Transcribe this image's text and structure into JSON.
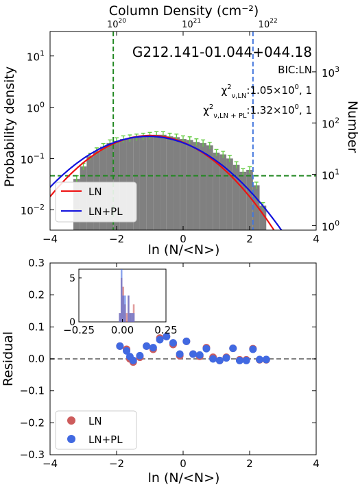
{
  "chart_data": [
    {
      "type": "bar",
      "title": "G212.141-01.044+044.18",
      "xlabel": "ln (N/<N>)",
      "ylabel": "Probability density",
      "ylabel_right": "Number",
      "top_axis_label": "Column Density (cm⁻²)",
      "top_ticks": [
        {
          "base": "10",
          "exp": "20",
          "ln_x": -2.0
        },
        {
          "base": "10",
          "exp": "21",
          "ln_x": 0.25
        },
        {
          "base": "10",
          "exp": "22",
          "ln_x": 2.55
        }
      ],
      "xlim": [
        -4,
        4
      ],
      "ylim_log": [
        0.004,
        30
      ],
      "x_ticks": [
        "−4",
        "−2",
        "0",
        "2",
        "4"
      ],
      "y_ticks": [
        {
          "base": "10",
          "exp": "−2",
          "value": 0.01
        },
        {
          "base": "10",
          "exp": "−1",
          "value": 0.1
        },
        {
          "base": "10",
          "exp": "0",
          "value": 1
        },
        {
          "base": "10",
          "exp": "1",
          "value": 10
        }
      ],
      "right_ticks": [
        {
          "base": "10",
          "exp": "0",
          "value": 0.0049
        },
        {
          "base": "10",
          "exp": "1",
          "value": 0.049
        },
        {
          "base": "10",
          "exp": "2",
          "value": 0.49
        },
        {
          "base": "10",
          "exp": "3",
          "value": 4.9
        }
      ],
      "annotations": {
        "bic": "BIC:LN",
        "chi_ln_label": "LN",
        "chi_ln_value": ":1.05×10",
        "chi_ln_exp": "0",
        "chi_ln_tail": ", 1",
        "chi_lnpl_label": "LN + PL",
        "chi_lnpl_value": ":1.32×10",
        "chi_lnpl_exp": "0",
        "chi_lnpl_tail": ", 1"
      },
      "histogram": {
        "bin_width": 0.2,
        "bins": [
          {
            "x": -3.2,
            "y": 0.04
          },
          {
            "x": -3.0,
            "y": 0.07
          },
          {
            "x": -2.8,
            "y": 0.11
          },
          {
            "x": -2.6,
            "y": 0.14
          },
          {
            "x": -2.4,
            "y": 0.17
          },
          {
            "x": -2.2,
            "y": 0.2
          },
          {
            "x": -2.0,
            "y": 0.22
          },
          {
            "x": -1.8,
            "y": 0.24
          },
          {
            "x": -1.6,
            "y": 0.25
          },
          {
            "x": -1.4,
            "y": 0.26
          },
          {
            "x": -1.2,
            "y": 0.27
          },
          {
            "x": -1.0,
            "y": 0.28
          },
          {
            "x": -0.8,
            "y": 0.29
          },
          {
            "x": -0.6,
            "y": 0.29
          },
          {
            "x": -0.4,
            "y": 0.27
          },
          {
            "x": -0.2,
            "y": 0.26
          },
          {
            "x": 0.0,
            "y": 0.24
          },
          {
            "x": 0.2,
            "y": 0.23
          },
          {
            "x": 0.4,
            "y": 0.21
          },
          {
            "x": 0.6,
            "y": 0.2
          },
          {
            "x": 0.8,
            "y": 0.18
          },
          {
            "x": 1.0,
            "y": 0.13
          },
          {
            "x": 1.2,
            "y": 0.12
          },
          {
            "x": 1.4,
            "y": 0.1
          },
          {
            "x": 1.6,
            "y": 0.075
          },
          {
            "x": 1.8,
            "y": 0.055
          },
          {
            "x": 2.0,
            "y": 0.06
          },
          {
            "x": 2.2,
            "y": 0.03
          },
          {
            "x": 2.4,
            "y": 0.012
          }
        ],
        "error_fraction": 0.15,
        "color": "#808080",
        "error_color": "#66cc44"
      },
      "series": [
        {
          "name": "LN",
          "mu": -1.0,
          "sigma": 1.28,
          "peak": 0.28,
          "color": "#ee1111"
        },
        {
          "name": "LN+PL",
          "mu": -1.05,
          "sigma": 1.38,
          "peak": 0.27,
          "color": "#1111dd"
        }
      ],
      "threshold_lines": {
        "green_vertical_x": -2.1,
        "green_horizontal_y": 0.046,
        "blue_vertical_x": 2.1,
        "green_color": "#228822",
        "blue_color": "#4477dd"
      },
      "legend_position": "lower-left"
    },
    {
      "type": "scatter",
      "xlabel": "ln (N/<N>)",
      "ylabel": "Residual",
      "xlim": [
        -4,
        4
      ],
      "ylim": [
        -0.3,
        0.3
      ],
      "x_ticks": [
        "−4",
        "−2",
        "0",
        "2",
        "4"
      ],
      "y_ticks": [
        "−0.3",
        "−0.2",
        "−0.1",
        "0.0",
        "0.1",
        "0.2",
        "0.3"
      ],
      "zero_line": 0.0,
      "series": [
        {
          "name": "LN",
          "color": "#cd5c5c",
          "points": [
            [
              -1.9,
              0.04
            ],
            [
              -1.7,
              0.03
            ],
            [
              -1.6,
              0.0
            ],
            [
              -1.5,
              -0.01
            ],
            [
              -1.3,
              0.005
            ],
            [
              -1.1,
              0.04
            ],
            [
              -0.9,
              0.03
            ],
            [
              -0.7,
              0.065
            ],
            [
              -0.5,
              0.07
            ],
            [
              -0.3,
              0.045
            ],
            [
              -0.1,
              0.01
            ],
            [
              0.1,
              0.055
            ],
            [
              0.3,
              0.015
            ],
            [
              0.5,
              0.008
            ],
            [
              0.7,
              0.035
            ],
            [
              0.9,
              0.005
            ],
            [
              1.1,
              -0.005
            ],
            [
              1.3,
              0.005
            ],
            [
              1.5,
              0.033
            ],
            [
              1.7,
              -0.003
            ],
            [
              1.9,
              -0.003
            ],
            [
              2.1,
              0.032
            ],
            [
              2.3,
              -0.003
            ],
            [
              2.5,
              -0.003
            ]
          ]
        },
        {
          "name": "LN+PL",
          "color": "#4169e1",
          "points": [
            [
              -1.9,
              0.04
            ],
            [
              -1.7,
              0.025
            ],
            [
              -1.6,
              0.007
            ],
            [
              -1.5,
              -0.005
            ],
            [
              -1.3,
              0.01
            ],
            [
              -1.1,
              0.04
            ],
            [
              -0.9,
              0.035
            ],
            [
              -0.7,
              0.06
            ],
            [
              -0.5,
              0.07
            ],
            [
              -0.3,
              0.05
            ],
            [
              -0.1,
              0.015
            ],
            [
              0.1,
              0.055
            ],
            [
              0.3,
              0.015
            ],
            [
              0.5,
              0.012
            ],
            [
              0.7,
              0.032
            ],
            [
              0.9,
              0.0
            ],
            [
              1.1,
              -0.005
            ],
            [
              1.3,
              0.003
            ],
            [
              1.5,
              0.033
            ],
            [
              1.7,
              -0.005
            ],
            [
              1.9,
              -0.005
            ],
            [
              2.1,
              0.03
            ],
            [
              2.3,
              -0.002
            ],
            [
              2.5,
              -0.002
            ]
          ]
        }
      ],
      "legend_position": "lower-left",
      "inset": {
        "type": "histogram",
        "xlim": [
          -0.25,
          0.25
        ],
        "ylim": [
          0,
          6
        ],
        "x_ticks": [
          "−0.25",
          "0.00",
          "0.25"
        ],
        "y_ticks": [
          "0",
          "5"
        ],
        "bin_width": 0.01,
        "series": [
          {
            "name": "LN",
            "color": "#cd5c5c",
            "bins": [
              [
                -0.015,
                1
              ],
              [
                -0.005,
                5
              ],
              [
                0.005,
                4
              ],
              [
                0.015,
                2
              ],
              [
                0.025,
                1
              ],
              [
                0.035,
                3
              ],
              [
                0.045,
                1
              ],
              [
                0.055,
                1
              ],
              [
                0.065,
                2
              ]
            ]
          },
          {
            "name": "LN+PL",
            "color": "#4169e1",
            "bins": [
              [
                -0.015,
                1
              ],
              [
                -0.005,
                6
              ],
              [
                0.005,
                3
              ],
              [
                0.015,
                3
              ],
              [
                0.035,
                3
              ],
              [
                0.045,
                1
              ],
              [
                0.055,
                1
              ],
              [
                0.065,
                1
              ]
            ]
          }
        ]
      }
    }
  ]
}
